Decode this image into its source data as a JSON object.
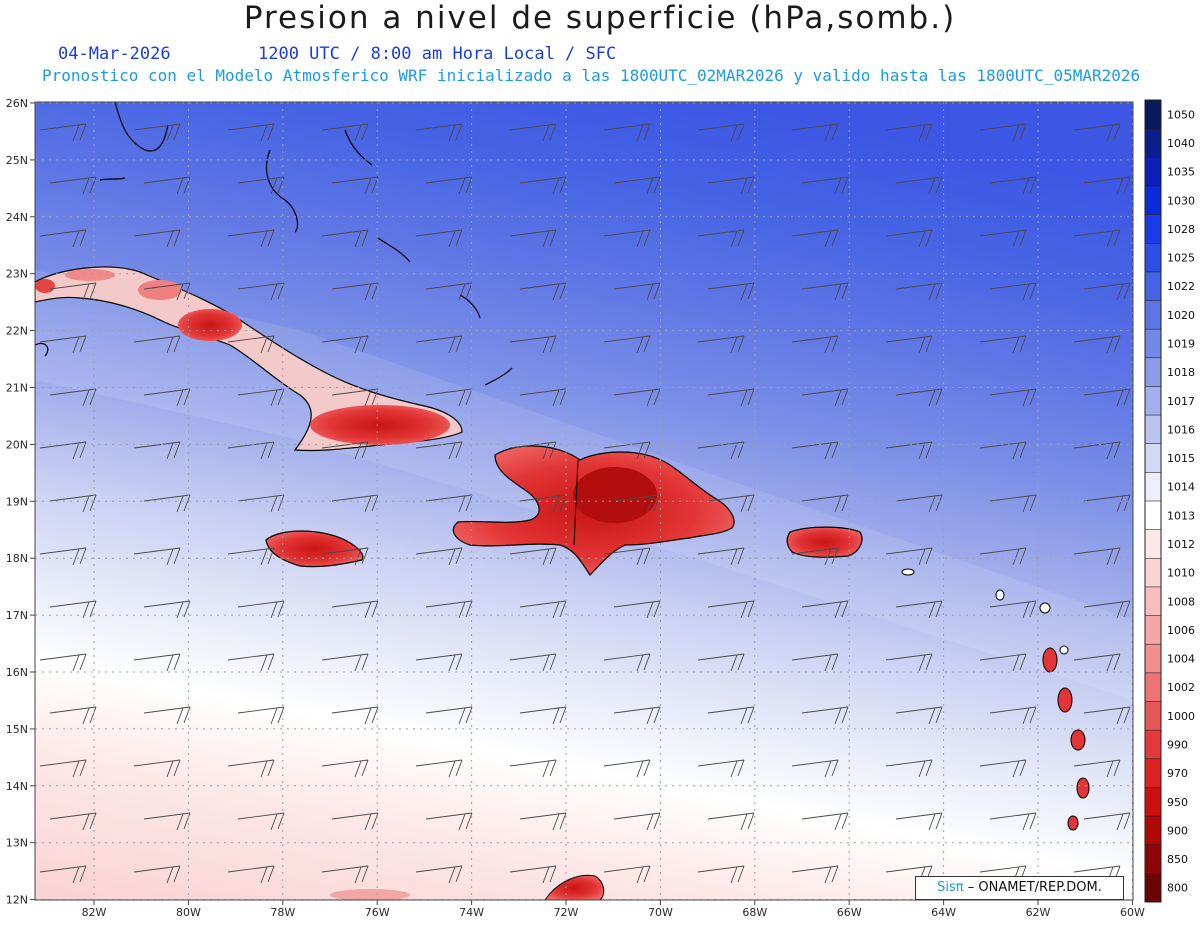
{
  "title": "Presion a nivel de superficie (hPa,somb.)",
  "date": "04-Mar-2026",
  "time_line": "1200 UTC / 8:00 am Hora Local / SFC",
  "forecast_line": "Pronostico con el Modelo Atmosferico WRF inicializado a las 1800UTC_02MAR2026 y valido hasta las  1800UTC_05MAR2026",
  "lat_labels": [
    "26N",
    "25N",
    "24N",
    "23N",
    "22N",
    "21N",
    "20N",
    "19N",
    "18N",
    "17N",
    "16N",
    "15N",
    "14N",
    "13N",
    "12N"
  ],
  "lon_labels": [
    "82W",
    "80W",
    "78W",
    "76W",
    "74W",
    "72W",
    "70W",
    "68W",
    "66W",
    "64W",
    "62W",
    "60W"
  ],
  "colorbar": {
    "levels": [
      "1050",
      "1040",
      "1035",
      "1030",
      "1028",
      "1025",
      "1022",
      "1020",
      "1019",
      "1018",
      "1017",
      "1016",
      "1015",
      "1014",
      "1013",
      "1012",
      "1010",
      "1008",
      "1006",
      "1004",
      "1002",
      "1000",
      "990",
      "970",
      "950",
      "900",
      "850",
      "800"
    ],
    "colors": [
      "#0a1a5c",
      "#0b1f8a",
      "#0a20b8",
      "#0b2bd8",
      "#1a3ce8",
      "#2e4fe6",
      "#4663e4",
      "#5e76e4",
      "#7488e6",
      "#8b9be8",
      "#a3afec",
      "#bbc3f0",
      "#d3d9f5",
      "#eceef9",
      "#ffffff",
      "#fde8e8",
      "#fbd3d3",
      "#f8bdbd",
      "#f5a6a6",
      "#f18f8f",
      "#ec7474",
      "#e65757",
      "#e03a3a",
      "#d92222",
      "#cc1010",
      "#b00808",
      "#8e0505",
      "#6a0303"
    ]
  },
  "credit_brand": "Sisπ",
  "credit_text": "– ONAMET/REP.DOM."
}
